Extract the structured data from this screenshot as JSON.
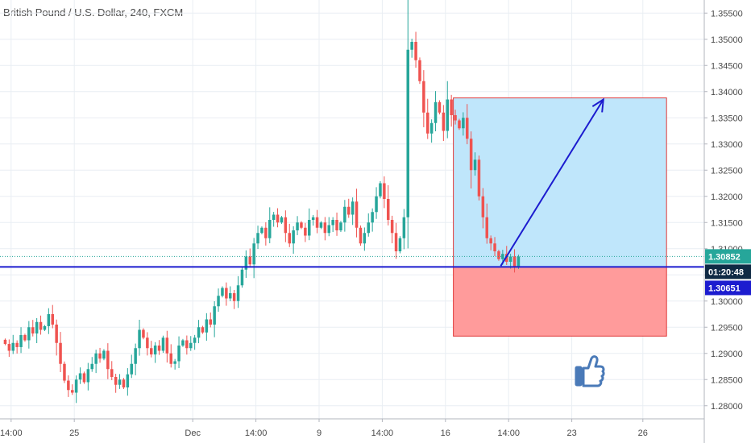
{
  "header": {
    "title": "British Pound / U.S. Dollar, 240, FXCM"
  },
  "colors": {
    "up": "#26a69a",
    "down": "#ef5350",
    "grid": "#e9eef3",
    "axis_line": "#b2b5be",
    "hline": "#1c1ccf",
    "arrow": "#1c1ccf",
    "target_zone": "#bfe6fb",
    "stop_zone": "#ff9b9b",
    "zone_border": "#e03a3a",
    "price_badge": "#26a69a",
    "level_badge": "#1c1ccf",
    "timer_badge": "#0f2a44",
    "thumb": "#4a7ab8"
  },
  "badges": {
    "price": "1.30852",
    "timer": "01:20:48",
    "level": "1.30651"
  },
  "icons": {
    "thumb": "thumbs-up-icon"
  },
  "chart_data": {
    "type": "candlestick",
    "title": "British Pound / U.S. Dollar, 240, FXCM",
    "y_ticks": [
      "1.35500",
      "1.35000",
      "1.34500",
      "1.34000",
      "1.33500",
      "1.33000",
      "1.32500",
      "1.32000",
      "1.31500",
      "1.31000",
      "1.30500",
      "1.30000",
      "1.29500",
      "1.29000",
      "1.28500",
      "1.28000"
    ],
    "y_tick_values": [
      1.355,
      1.35,
      1.345,
      1.34,
      1.335,
      1.33,
      1.325,
      1.32,
      1.315,
      1.31,
      1.305,
      1.3,
      1.295,
      1.29,
      1.285,
      1.28
    ],
    "x_ticks": [
      "14:00",
      "25",
      "Dec",
      "14:00",
      "9",
      "14:00",
      "16",
      "14:00",
      "23",
      "26"
    ],
    "x_tick_bars": [
      2,
      18,
      48,
      64,
      80,
      96,
      112,
      128,
      144,
      162
    ],
    "ylim": [
      1.2775,
      1.3575
    ],
    "last_price": 1.30852,
    "horizontal_level": 1.30651,
    "position": {
      "entry": 1.30651,
      "target": 1.3388,
      "stop": 1.2933,
      "start_bar": 114,
      "end_bar": 168
    },
    "arrow": {
      "from_bar": 126,
      "from_price": 1.3067,
      "to_bar": 152,
      "to_price": 1.3385
    },
    "closes": [
      1.2918,
      1.2905,
      1.292,
      1.2912,
      1.2935,
      1.2925,
      1.295,
      1.2938,
      1.296,
      1.2945,
      1.2952,
      1.2975,
      1.2955,
      1.292,
      1.288,
      1.2848,
      1.283,
      1.2825,
      1.285,
      1.2862,
      1.2845,
      1.287,
      1.288,
      1.29,
      1.289,
      1.2905,
      1.287,
      1.2855,
      1.284,
      1.285,
      1.2835,
      1.286,
      1.288,
      1.291,
      1.2945,
      1.293,
      1.291,
      1.2898,
      1.2915,
      1.2905,
      1.293,
      1.29,
      1.288,
      1.2885,
      1.2915,
      1.2925,
      1.291,
      1.292,
      1.293,
      1.295,
      1.294,
      1.2965,
      1.2955,
      1.299,
      1.301,
      1.3025,
      1.3005,
      1.3015,
      1.3,
      1.303,
      1.306,
      1.3085,
      1.307,
      1.311,
      1.313,
      1.314,
      1.312,
      1.3155,
      1.3165,
      1.315,
      1.316,
      1.313,
      1.311,
      1.3135,
      1.315,
      1.314,
      1.3125,
      1.3155,
      1.316,
      1.314,
      1.315,
      1.313,
      1.3145,
      1.3155,
      1.3135,
      1.315,
      1.318,
      1.3165,
      1.319,
      1.314,
      1.311,
      1.313,
      1.315,
      1.317,
      1.32,
      1.3225,
      1.3195,
      1.3155,
      1.313,
      1.3095,
      1.312,
      1.316,
      1.348,
      1.3495,
      1.346,
      1.342,
      1.336,
      1.332,
      1.334,
      1.338,
      1.336,
      1.3325,
      1.3385,
      1.3355,
      1.3345,
      1.333,
      1.335,
      1.331,
      1.325,
      1.327,
      1.32,
      1.316,
      1.312,
      1.311,
      1.3095,
      1.308,
      1.309,
      1.3075,
      1.3085,
      1.3065,
      1.3085
    ]
  }
}
